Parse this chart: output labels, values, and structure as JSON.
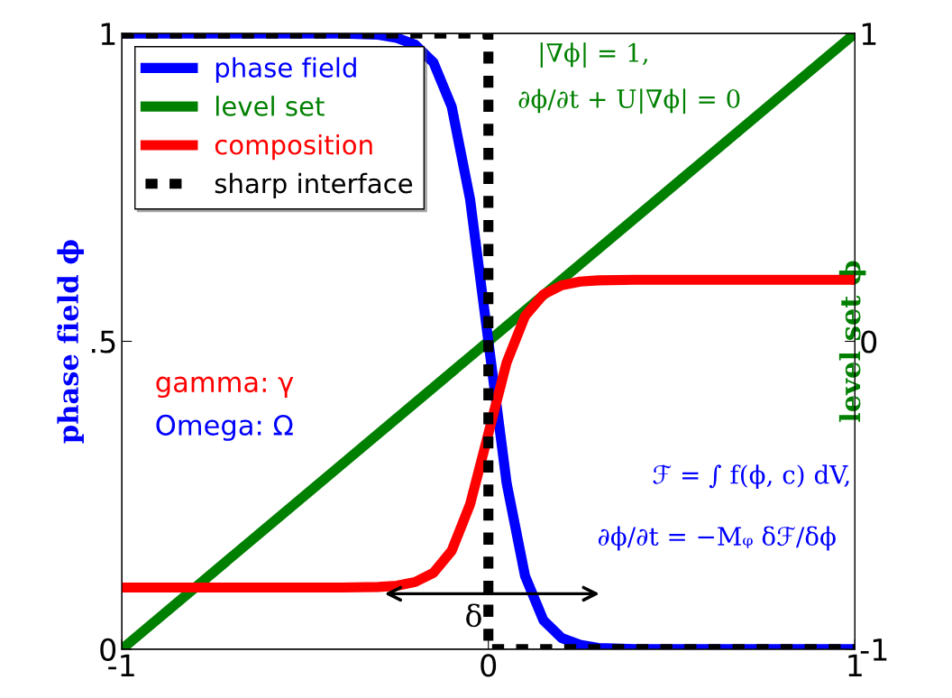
{
  "chart_data": {
    "type": "line",
    "x": [
      -1,
      -0.6,
      -0.4,
      -0.3,
      -0.25,
      -0.2,
      -0.15,
      -0.1,
      -0.05,
      0,
      0.05,
      0.1,
      0.15,
      0.2,
      0.25,
      0.3,
      0.4,
      0.6,
      1
    ],
    "series": [
      {
        "name": "phase field",
        "color": "#0000ff",
        "values": [
          1,
          1,
          1,
          0.998,
          0.993,
          0.982,
          0.953,
          0.881,
          0.731,
          0.5,
          0.269,
          0.119,
          0.047,
          0.018,
          0.007,
          0.002,
          0,
          0,
          0
        ]
      },
      {
        "name": "level set",
        "color": "#008000",
        "axis": "y2",
        "x": [
          -1,
          1
        ],
        "values": [
          -1,
          1
        ]
      },
      {
        "name": "composition",
        "color": "#ff0000",
        "values": [
          0.1,
          0.1,
          0.1,
          0.101,
          0.103,
          0.109,
          0.124,
          0.16,
          0.235,
          0.35,
          0.466,
          0.541,
          0.576,
          0.591,
          0.597,
          0.599,
          0.6,
          0.6,
          0.6
        ]
      },
      {
        "name": "sharp interface",
        "color": "#000000",
        "type": "step",
        "line_style": "dashed",
        "x": [
          -1,
          0,
          1
        ],
        "values": [
          1,
          0,
          0
        ]
      }
    ],
    "xlim": [
      -1,
      1
    ],
    "xticks": [
      -1,
      0,
      1
    ],
    "ylim": [
      0,
      1
    ],
    "yticks": [
      0,
      {
        "value": 0.5,
        "label": ".5"
      },
      1
    ],
    "y2lim": [
      -1,
      1
    ],
    "y2ticks": [
      -1,
      0,
      1
    ],
    "ylabel": "phase field ϕ",
    "y2label": "level set ϕ",
    "legend": "top left",
    "grid": false,
    "annotations": [
      "|∇ϕ| = 1,",
      "∂ϕ/∂t + U|∇ϕ| = 0",
      "gamma: γ",
      "Omega: Ω",
      "ℱ = ∫ f(ϕ, c) dV,",
      "∂ϕ/∂t = −Mᵩ δℱ/δϕ",
      "δ"
    ]
  }
}
